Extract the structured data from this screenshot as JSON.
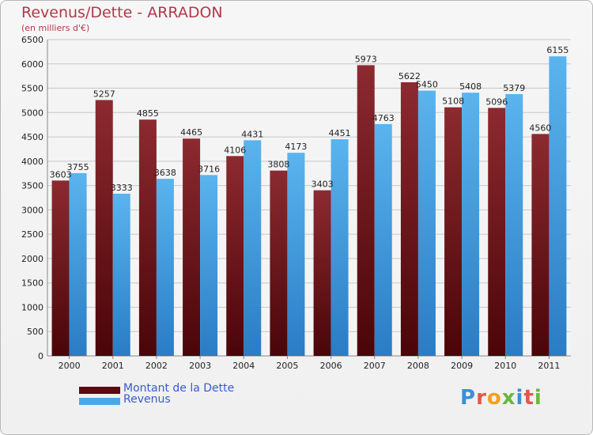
{
  "header": {
    "title": "Revenus/Dette - ARRADON",
    "subtitle": "(en milliers d'€)"
  },
  "legend": {
    "debt_label": "Montant de la Dette",
    "revenue_label": "Revenus"
  },
  "logo": {
    "text": "Proxiti"
  },
  "colors": {
    "debt": "#7a1c22",
    "debt_dark": "#4a0508",
    "revenue": "#4aa8e8",
    "revenue_dark": "#2a80c8",
    "title": "#b03a4a",
    "legend_text": "#3a5ad0"
  },
  "chart_data": {
    "type": "bar",
    "categories": [
      "2000",
      "2001",
      "2002",
      "2003",
      "2004",
      "2005",
      "2006",
      "2007",
      "2008",
      "2009",
      "2010",
      "2011"
    ],
    "series": [
      {
        "name": "Montant de la Dette",
        "values": [
          3603,
          5257,
          4855,
          4465,
          4106,
          3808,
          3403,
          5973,
          5622,
          5108,
          5096,
          4560
        ]
      },
      {
        "name": "Revenus",
        "values": [
          3755,
          3333,
          3638,
          3716,
          4431,
          4173,
          4451,
          4763,
          5450,
          5408,
          5379,
          6155
        ]
      }
    ],
    "title": "Revenus/Dette - ARRADON",
    "ylabel": "(en milliers d'€)",
    "ylim": [
      0,
      6500
    ],
    "yticks": [
      "0",
      "500",
      "1000",
      "1500",
      "2000",
      "2500",
      "3000",
      "3500",
      "4000",
      "4500",
      "5000",
      "5500",
      "6000",
      "6500"
    ],
    "grid": true,
    "legend_position": "bottom-left"
  }
}
